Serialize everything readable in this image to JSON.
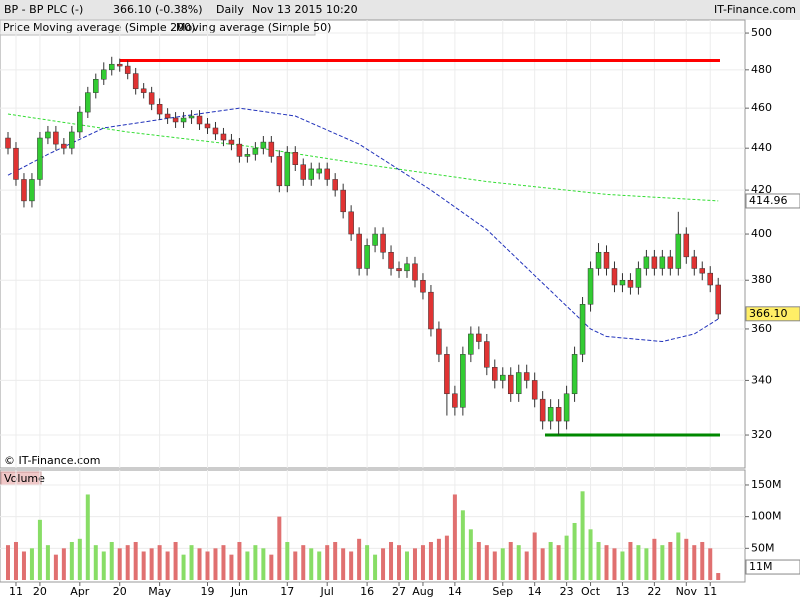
{
  "chart_data": {
    "type": "candlestick",
    "header": {
      "title": "BP - BP PLC (-)",
      "quote": "366.10 (-0.38%)",
      "period": "Daily",
      "date": "Nov 13 2015 10:20",
      "brand": "IT-Finance.com"
    },
    "copyright": "© IT-Finance.com",
    "legend": [
      "Price",
      "Moving average (Simple 200)",
      "Moving average (Simple 50)"
    ],
    "log": true,
    "grid": true,
    "up_color": "#33cc33",
    "down_color": "#e03333",
    "ylim": [
      308.5,
      507.3
    ],
    "yticks": [
      320,
      340,
      360,
      380,
      400,
      420,
      440,
      460,
      480,
      500
    ],
    "xticks": [
      {
        "value": 1,
        "label": "11"
      },
      {
        "value": 4,
        "label": "20"
      },
      {
        "value": 9,
        "label": "Apr"
      },
      {
        "value": 14,
        "label": "20"
      },
      {
        "value": 19,
        "label": "May"
      },
      {
        "value": 25,
        "label": "19"
      },
      {
        "value": 29,
        "label": "Jun"
      },
      {
        "value": 35,
        "label": "17"
      },
      {
        "value": 40,
        "label": "Jul"
      },
      {
        "value": 45,
        "label": "16"
      },
      {
        "value": 49,
        "label": "27"
      },
      {
        "value": 52,
        "label": "Aug"
      },
      {
        "value": 56,
        "label": "14"
      },
      {
        "value": 62,
        "label": "Sep"
      },
      {
        "value": 66,
        "label": "14"
      },
      {
        "value": 70,
        "label": "23"
      },
      {
        "value": 73,
        "label": "Oct"
      },
      {
        "value": 77,
        "label": "13"
      },
      {
        "value": 81,
        "label": "22"
      },
      {
        "value": 85,
        "label": "Nov"
      },
      {
        "value": 88,
        "label": "11"
      }
    ],
    "ohlc": [
      [
        445,
        448,
        437,
        440
      ],
      [
        440,
        443,
        422,
        425
      ],
      [
        425,
        428,
        412,
        415
      ],
      [
        415,
        428,
        412,
        425
      ],
      [
        425,
        448,
        422,
        445
      ],
      [
        445,
        451,
        442,
        448
      ],
      [
        448,
        451,
        439,
        442
      ],
      [
        442,
        445,
        437,
        440
      ],
      [
        440,
        451,
        437,
        448
      ],
      [
        448,
        461,
        445,
        458
      ],
      [
        458,
        471,
        455,
        468
      ],
      [
        468,
        478,
        465,
        475
      ],
      [
        475,
        484,
        472,
        480
      ],
      [
        480,
        487,
        477,
        483
      ],
      [
        483,
        486,
        479,
        482
      ],
      [
        482,
        485,
        475,
        478
      ],
      [
        478,
        481,
        467,
        470
      ],
      [
        470,
        473,
        465,
        468
      ],
      [
        468,
        471,
        459,
        462
      ],
      [
        462,
        465,
        454,
        457
      ],
      [
        457,
        460,
        452,
        455
      ],
      [
        455,
        458,
        450,
        453
      ],
      [
        453,
        458,
        450,
        455
      ],
      [
        455,
        459,
        452,
        456
      ],
      [
        456,
        459,
        449,
        452
      ],
      [
        452,
        455,
        447,
        450
      ],
      [
        450,
        453,
        444,
        447
      ],
      [
        447,
        450,
        441,
        444
      ],
      [
        444,
        447,
        439,
        442
      ],
      [
        442,
        445,
        433,
        436
      ],
      [
        436,
        440,
        433,
        437
      ],
      [
        437,
        443,
        434,
        440
      ],
      [
        440,
        446,
        437,
        443
      ],
      [
        443,
        446,
        433,
        436
      ],
      [
        436,
        439,
        419,
        422
      ],
      [
        422,
        441,
        419,
        438
      ],
      [
        438,
        441,
        429,
        432
      ],
      [
        432,
        435,
        422,
        425
      ],
      [
        425,
        433,
        422,
        430
      ],
      [
        428,
        433,
        425,
        430
      ],
      [
        430,
        433,
        422,
        425
      ],
      [
        425,
        428,
        417,
        420
      ],
      [
        420,
        423,
        407,
        410
      ],
      [
        410,
        413,
        397,
        400
      ],
      [
        400,
        403,
        382,
        385
      ],
      [
        385,
        398,
        382,
        395
      ],
      [
        395,
        403,
        392,
        400
      ],
      [
        400,
        403,
        389,
        392
      ],
      [
        392,
        395,
        382,
        385
      ],
      [
        385,
        388,
        381,
        384
      ],
      [
        384,
        390,
        381,
        387
      ],
      [
        387,
        390,
        377,
        380
      ],
      [
        380,
        383,
        372,
        375
      ],
      [
        375,
        378,
        357,
        360
      ],
      [
        360,
        363,
        347,
        350
      ],
      [
        350,
        353,
        327,
        335
      ],
      [
        335,
        338,
        327,
        330
      ],
      [
        330,
        353,
        327,
        350
      ],
      [
        350,
        361,
        347,
        358
      ],
      [
        358,
        361,
        352,
        355
      ],
      [
        355,
        358,
        342,
        345
      ],
      [
        345,
        348,
        337,
        340
      ],
      [
        340,
        345,
        337,
        342
      ],
      [
        342,
        345,
        332,
        335
      ],
      [
        335,
        346,
        332,
        343
      ],
      [
        343,
        346,
        337,
        340
      ],
      [
        340,
        343,
        330,
        333
      ],
      [
        333,
        336,
        322,
        325
      ],
      [
        325,
        333,
        322,
        330
      ],
      [
        330,
        333,
        320,
        325
      ],
      [
        325,
        338,
        322,
        335
      ],
      [
        335,
        353,
        332,
        350
      ],
      [
        350,
        373,
        347,
        370
      ],
      [
        370,
        388,
        367,
        385
      ],
      [
        385,
        396,
        382,
        392
      ],
      [
        392,
        395,
        382,
        385
      ],
      [
        385,
        388,
        375,
        378
      ],
      [
        378,
        383,
        375,
        380
      ],
      [
        380,
        383,
        374,
        377
      ],
      [
        377,
        388,
        374,
        385
      ],
      [
        385,
        393,
        382,
        390
      ],
      [
        390,
        393,
        382,
        385
      ],
      [
        385,
        393,
        382,
        390
      ],
      [
        390,
        393,
        382,
        385
      ],
      [
        385,
        410,
        382,
        400
      ],
      [
        400,
        403,
        387,
        390
      ],
      [
        390,
        393,
        382,
        385
      ],
      [
        385,
        388,
        380,
        383
      ],
      [
        383,
        386,
        375,
        378
      ],
      [
        378,
        381,
        364,
        366
      ]
    ],
    "last": {
      "value": 366.1,
      "label": "366.10"
    },
    "ma200": {
      "name": "Moving average (Simple 200)",
      "color": "#33dd33",
      "x": [
        0,
        15,
        30,
        45,
        60,
        75,
        89
      ],
      "values": [
        457,
        448,
        441,
        432,
        424,
        418,
        415
      ],
      "last": {
        "value": 414.96,
        "label": "414.96"
      }
    },
    "ma50": {
      "name": "Moving average (Simple 50)",
      "color": "#2233bb",
      "x": [
        0,
        5,
        12,
        22,
        29,
        36,
        44,
        53,
        60,
        66,
        73,
        75,
        82,
        86,
        89
      ],
      "values": [
        427,
        437,
        450,
        456,
        460,
        456,
        442,
        420,
        402,
        382,
        360,
        357,
        355,
        358,
        364
      ]
    },
    "levels": [
      {
        "value": 485,
        "color": "#ff0000"
      },
      {
        "value": 320,
        "color": "#008800"
      }
    ],
    "volume": {
      "title": "Volume",
      "ylim": [
        0,
        161
      ],
      "yticks": [
        {
          "value": 50,
          "label": "50M"
        },
        {
          "value": 100,
          "label": "100M"
        },
        {
          "value": 150,
          "label": "150M"
        }
      ],
      "values": [
        55,
        60,
        45,
        50,
        95,
        55,
        40,
        50,
        60,
        65,
        135,
        55,
        45,
        60,
        50,
        55,
        60,
        45,
        50,
        55,
        45,
        60,
        40,
        55,
        50,
        45,
        50,
        55,
        40,
        60,
        45,
        55,
        50,
        40,
        100,
        60,
        45,
        55,
        50,
        45,
        55,
        60,
        50,
        45,
        65,
        55,
        40,
        50,
        60,
        55,
        45,
        50,
        55,
        60,
        65,
        70,
        135,
        110,
        80,
        60,
        55,
        45,
        50,
        60,
        55,
        45,
        75,
        50,
        60,
        55,
        70,
        90,
        140,
        80,
        60,
        55,
        50,
        45,
        60,
        55,
        50,
        65,
        55,
        60,
        75,
        65,
        55,
        60,
        50,
        11
      ],
      "last": {
        "value": 11,
        "label": "11M"
      }
    }
  }
}
